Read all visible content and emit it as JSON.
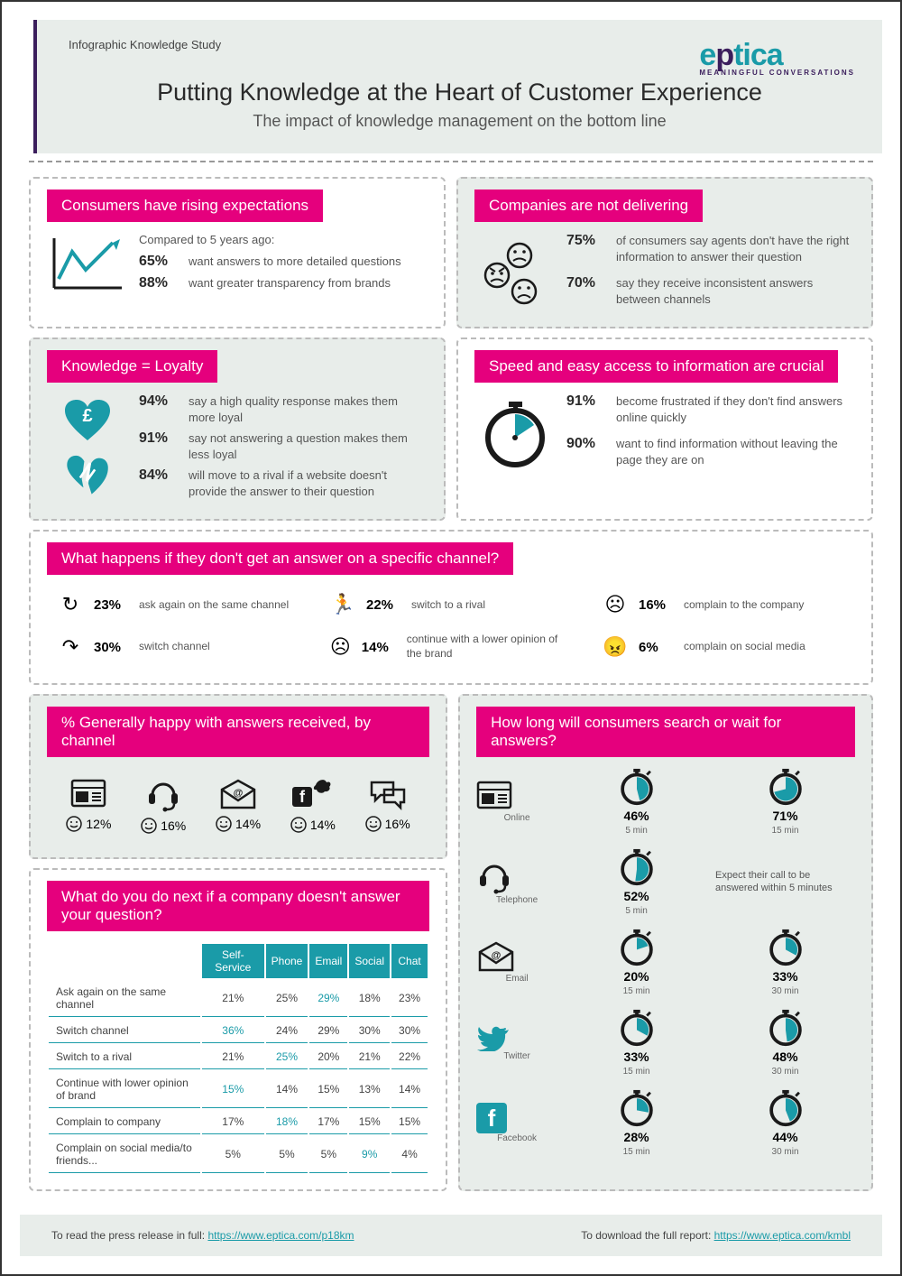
{
  "header": {
    "study_label": "Infographic Knowledge Study",
    "logo_text": "eptica",
    "logo_sub": "MEANINGFUL CONVERSATIONS",
    "title": "Putting Knowledge at the Heart of Customer Experience",
    "subtitle": "The impact of knowledge management on the bottom line"
  },
  "colors": {
    "pink": "#e5007d",
    "teal": "#1a9ba8",
    "purple": "#3b1e5c",
    "grey_bg": "#e8edea"
  },
  "expectations": {
    "title": "Consumers have rising expectations",
    "compared": "Compared to 5 years ago:",
    "stats": [
      {
        "pct": "65%",
        "txt": "want answers to more detailed questions"
      },
      {
        "pct": "88%",
        "txt": "want greater transparency from brands"
      }
    ]
  },
  "delivering": {
    "title": "Companies are not delivering",
    "stats": [
      {
        "pct": "75%",
        "txt": "of consumers say agents don't have the right information to answer their question"
      },
      {
        "pct": "70%",
        "txt": "say they receive inconsistent answers between channels"
      }
    ]
  },
  "loyalty": {
    "title": "Knowledge = Loyalty",
    "stats": [
      {
        "pct": "94%",
        "txt": "say a high quality response makes them more loyal"
      },
      {
        "pct": "91%",
        "txt": "say not answering a question makes them less loyal"
      },
      {
        "pct": "84%",
        "txt": "will move to a rival if a website doesn't provide the answer to their question"
      }
    ]
  },
  "speed": {
    "title": "Speed and easy access to information are crucial",
    "stats": [
      {
        "pct": "91%",
        "txt": "become frustrated if they don't find answers online quickly"
      },
      {
        "pct": "90%",
        "txt": "want to find information without leaving the page they are on"
      }
    ]
  },
  "no_answer": {
    "title": "What happens if they don't get an answer on a specific channel?",
    "actions": [
      {
        "icon": "↻",
        "pct": "23%",
        "txt": "ask again on the same channel"
      },
      {
        "icon": "🏃",
        "pct": "22%",
        "txt": "switch to a rival"
      },
      {
        "icon": "☹",
        "pct": "16%",
        "txt": "complain to the company"
      },
      {
        "icon": "↷",
        "pct": "30%",
        "txt": "switch channel"
      },
      {
        "icon": "☹",
        "pct": "14%",
        "txt": "continue with a lower opinion of the brand"
      },
      {
        "icon": "😠",
        "pct": "6%",
        "txt": "complain on social media"
      }
    ]
  },
  "happy": {
    "title": "% Generally happy with answers received, by channel",
    "channels": [
      {
        "name": "web",
        "pct": "12%"
      },
      {
        "name": "phone",
        "pct": "16%"
      },
      {
        "name": "email",
        "pct": "14%"
      },
      {
        "name": "social",
        "pct": "14%"
      },
      {
        "name": "chat",
        "pct": "16%"
      }
    ]
  },
  "next_table": {
    "title": "What do you do next if a company doesn't answer your question?",
    "columns": [
      "",
      "Self-Service",
      "Phone",
      "Email",
      "Social",
      "Chat"
    ],
    "rows": [
      {
        "label": "Ask again on the same channel",
        "vals": [
          "21%",
          "25%",
          "29%",
          "18%",
          "23%"
        ],
        "hl": 2
      },
      {
        "label": "Switch channel",
        "vals": [
          "36%",
          "24%",
          "29%",
          "30%",
          "30%"
        ],
        "hl": 0
      },
      {
        "label": "Switch to a rival",
        "vals": [
          "21%",
          "25%",
          "20%",
          "21%",
          "22%"
        ],
        "hl": 1
      },
      {
        "label": "Continue with lower opinion of brand",
        "vals": [
          "15%",
          "14%",
          "15%",
          "13%",
          "14%"
        ],
        "hl": 0
      },
      {
        "label": "Complain to company",
        "vals": [
          "17%",
          "18%",
          "17%",
          "15%",
          "15%"
        ],
        "hl": 1
      },
      {
        "label": "Complain on social media/to friends...",
        "vals": [
          "5%",
          "5%",
          "5%",
          "9%",
          "4%"
        ],
        "hl": 3
      }
    ]
  },
  "wait": {
    "title": "How long will consumers search or wait for answers?",
    "rows": [
      {
        "ch": "Online",
        "a": {
          "pct": "46%",
          "t": "5 min",
          "fill": 46
        },
        "b": {
          "pct": "71%",
          "t": "15 min",
          "fill": 71
        }
      },
      {
        "ch": "Telephone",
        "a": {
          "pct": "52%",
          "t": "5 min",
          "fill": 52
        },
        "note": "Expect their call to be answered within 5 minutes"
      },
      {
        "ch": "Email",
        "a": {
          "pct": "20%",
          "t": "15 min",
          "fill": 20
        },
        "b": {
          "pct": "33%",
          "t": "30 min",
          "fill": 33
        }
      },
      {
        "ch": "Twitter",
        "a": {
          "pct": "33%",
          "t": "15 min",
          "fill": 33
        },
        "b": {
          "pct": "48%",
          "t": "30 min",
          "fill": 48
        }
      },
      {
        "ch": "Facebook",
        "a": {
          "pct": "28%",
          "t": "15 min",
          "fill": 28
        },
        "b": {
          "pct": "44%",
          "t": "30 min",
          "fill": 44
        }
      }
    ]
  },
  "footer": {
    "left_txt": "To read the press release in full: ",
    "left_url": "https://www.eptica.com/p18km",
    "right_txt": "To download the full report: ",
    "right_url": "https://www.eptica.com/kmbl"
  }
}
